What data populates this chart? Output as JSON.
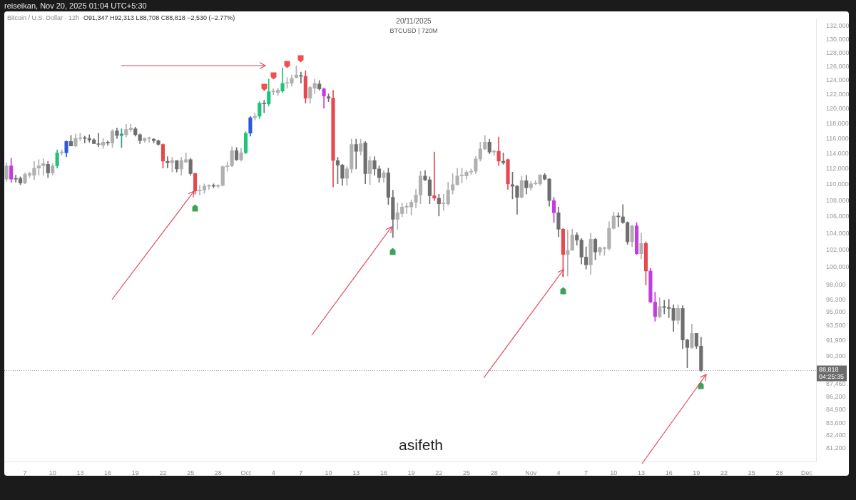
{
  "chart_data": {
    "type": "candlestick",
    "title": "20/11/2025",
    "subtitle": "BTCUSD | 720M",
    "annotations": [
      "reiseikan, Nov 20, 2025 01:04 UTC+5:30",
      "Bitcoin / U.S. Dollar · 12h",
      "O91,347 H92,313 L88,708 C88,818 −2,530 (−2.77%)",
      "04:25:35",
      "asifeth"
    ],
    "x": [
      "2025-09-05T00:00",
      "2025-09-05T12:00",
      "2025-09-06T00:00",
      "2025-09-06T12:00",
      "2025-09-07T00:00",
      "2025-09-07T12:00",
      "2025-09-08T00:00",
      "2025-09-08T12:00",
      "2025-09-09T00:00",
      "2025-09-09T12:00",
      "2025-09-10T00:00",
      "2025-09-10T12:00",
      "2025-09-11T00:00",
      "2025-09-11T12:00",
      "2025-09-12T00:00",
      "2025-09-12T12:00",
      "2025-09-13T00:00",
      "2025-09-13T12:00",
      "2025-09-14T00:00",
      "2025-09-14T12:00",
      "2025-09-15T00:00",
      "2025-09-15T12:00",
      "2025-09-16T00:00",
      "2025-09-16T12:00",
      "2025-09-17T00:00",
      "2025-09-17T12:00",
      "2025-09-18T00:00",
      "2025-09-18T12:00",
      "2025-09-19T00:00",
      "2025-09-19T12:00",
      "2025-09-20T00:00",
      "2025-09-20T12:00",
      "2025-09-21T00:00",
      "2025-09-21T12:00",
      "2025-09-22T00:00",
      "2025-09-22T12:00",
      "2025-09-23T00:00",
      "2025-09-23T12:00",
      "2025-09-24T00:00",
      "2025-09-24T12:00",
      "2025-09-25T00:00",
      "2025-09-25T12:00",
      "2025-09-26T00:00",
      "2025-09-26T12:00",
      "2025-09-27T00:00",
      "2025-09-27T12:00",
      "2025-09-28T00:00",
      "2025-09-28T12:00",
      "2025-09-29T00:00",
      "2025-09-29T12:00",
      "2025-09-30T00:00",
      "2025-09-30T12:00",
      "2025-10-01T00:00",
      "2025-10-01T12:00",
      "2025-10-02T00:00",
      "2025-10-02T12:00",
      "2025-10-03T00:00",
      "2025-10-03T12:00",
      "2025-10-04T00:00",
      "2025-10-04T12:00",
      "2025-10-05T00:00",
      "2025-10-05T12:00",
      "2025-10-06T00:00",
      "2025-10-06T12:00",
      "2025-10-07T00:00",
      "2025-10-07T12:00",
      "2025-10-08T00:00",
      "2025-10-08T12:00",
      "2025-10-09T00:00",
      "2025-10-09T12:00",
      "2025-10-10T00:00",
      "2025-10-10T12:00",
      "2025-10-11T00:00",
      "2025-10-11T12:00",
      "2025-10-12T00:00",
      "2025-10-12T12:00",
      "2025-10-13T00:00",
      "2025-10-13T12:00",
      "2025-10-14T00:00",
      "2025-10-14T12:00",
      "2025-10-15T00:00",
      "2025-10-15T12:00",
      "2025-10-16T00:00",
      "2025-10-16T12:00",
      "2025-10-17T00:00",
      "2025-10-17T12:00",
      "2025-10-18T00:00",
      "2025-10-18T12:00",
      "2025-10-19T00:00",
      "2025-10-19T12:00",
      "2025-10-20T00:00",
      "2025-10-20T12:00",
      "2025-10-21T00:00",
      "2025-10-21T12:00",
      "2025-10-22T00:00",
      "2025-10-22T12:00",
      "2025-10-23T00:00",
      "2025-10-23T12:00",
      "2025-10-24T00:00",
      "2025-10-24T12:00",
      "2025-10-25T00:00",
      "2025-10-25T12:00",
      "2025-10-26T00:00",
      "2025-10-26T12:00",
      "2025-10-27T00:00",
      "2025-10-27T12:00",
      "2025-10-28T00:00",
      "2025-10-28T12:00",
      "2025-10-29T00:00",
      "2025-10-29T12:00",
      "2025-10-30T00:00",
      "2025-10-30T12:00",
      "2025-10-31T00:00",
      "2025-10-31T12:00",
      "2025-11-01T00:00",
      "2025-11-01T12:00",
      "2025-11-02T00:00",
      "2025-11-02T12:00",
      "2025-11-03T00:00",
      "2025-11-03T12:00",
      "2025-11-04T00:00",
      "2025-11-04T12:00",
      "2025-11-05T00:00",
      "2025-11-05T12:00",
      "2025-11-06T00:00",
      "2025-11-06T12:00",
      "2025-11-07T00:00",
      "2025-11-07T12:00",
      "2025-11-08T00:00",
      "2025-11-08T12:00",
      "2025-11-09T00:00",
      "2025-11-09T12:00",
      "2025-11-10T00:00",
      "2025-11-10T12:00",
      "2025-11-11T00:00",
      "2025-11-11T12:00",
      "2025-11-12T00:00",
      "2025-11-12T12:00",
      "2025-11-13T00:00",
      "2025-11-13T12:00",
      "2025-11-14T00:00",
      "2025-11-14T12:00",
      "2025-11-15T00:00",
      "2025-11-15T12:00",
      "2025-11-16T00:00",
      "2025-11-16T12:00",
      "2025-11-17T00:00",
      "2025-11-17T12:00",
      "2025-11-18T00:00",
      "2025-11-18T12:00",
      "2025-11-19T00:00",
      "2025-11-19T12:00"
    ],
    "ohlc": [
      [
        110700,
        112800,
        110400,
        112400
      ],
      [
        112400,
        113400,
        110300,
        110700
      ],
      [
        110800,
        111200,
        110300,
        110700
      ],
      [
        110800,
        111000,
        110000,
        110200
      ],
      [
        110200,
        111500,
        110100,
        111300
      ],
      [
        111200,
        111600,
        110900,
        111400
      ],
      [
        111200,
        113000,
        110600,
        112100
      ],
      [
        112100,
        113200,
        111200,
        112400
      ],
      [
        112400,
        113300,
        111200,
        112700
      ],
      [
        112600,
        113000,
        110900,
        111500
      ],
      [
        111500,
        112700,
        111200,
        112400
      ],
      [
        112400,
        114500,
        112100,
        114100
      ],
      [
        114100,
        114500,
        113800,
        114200
      ],
      [
        114100,
        115700,
        113600,
        115600
      ],
      [
        115600,
        116400,
        115000,
        115000
      ],
      [
        115000,
        116600,
        114900,
        116000
      ],
      [
        116000,
        116700,
        115700,
        116100
      ],
      [
        116100,
        116300,
        115400,
        116000
      ],
      [
        116000,
        116500,
        115500,
        115800
      ],
      [
        115800,
        116000,
        115300,
        115300
      ],
      [
        115300,
        116700,
        114900,
        115200
      ],
      [
        115100,
        116000,
        114700,
        115500
      ],
      [
        115500,
        115700,
        115100,
        115400
      ],
      [
        115400,
        117200,
        114800,
        117000
      ],
      [
        117000,
        117400,
        116000,
        116400
      ],
      [
        116400,
        117300,
        114800,
        116600
      ],
      [
        116500,
        117900,
        116200,
        117200
      ],
      [
        117200,
        117900,
        116900,
        117400
      ],
      [
        117300,
        117500,
        116300,
        116500
      ],
      [
        116500,
        116600,
        115300,
        115700
      ],
      [
        115700,
        116100,
        115500,
        116000
      ],
      [
        116000,
        116200,
        115500,
        116100
      ],
      [
        115900,
        116000,
        115400,
        115700
      ],
      [
        115700,
        115800,
        115100,
        115200
      ],
      [
        115200,
        115300,
        112100,
        113000
      ],
      [
        113000,
        113600,
        112100,
        112800
      ],
      [
        112800,
        113500,
        111600,
        113100
      ],
      [
        113100,
        113100,
        111600,
        112000
      ],
      [
        112000,
        113500,
        111200,
        113100
      ],
      [
        112900,
        114100,
        112800,
        113200
      ],
      [
        113200,
        113400,
        111200,
        111400
      ],
      [
        111400,
        111500,
        108800,
        109200
      ],
      [
        109200,
        109900,
        108700,
        109300
      ],
      [
        109300,
        110100,
        108900,
        109800
      ],
      [
        109800,
        110000,
        109400,
        109900
      ],
      [
        109900,
        110100,
        109600,
        109800
      ],
      [
        109800,
        110000,
        109600,
        109900
      ],
      [
        109900,
        112400,
        109800,
        112300
      ],
      [
        112300,
        112900,
        111700,
        112400
      ],
      [
        112400,
        114900,
        112300,
        114400
      ],
      [
        114400,
        114800,
        113100,
        113200
      ],
      [
        113200,
        114700,
        113000,
        114100
      ],
      [
        114100,
        116900,
        114000,
        116700
      ],
      [
        116700,
        119000,
        116300,
        118800
      ],
      [
        118800,
        119400,
        118500,
        119000
      ],
      [
        119000,
        121000,
        118700,
        120800
      ],
      [
        120800,
        121200,
        119500,
        120700
      ],
      [
        120700,
        124200,
        120400,
        122400
      ],
      [
        122400,
        122800,
        122000,
        122500
      ],
      [
        122300,
        122900,
        121900,
        122600
      ],
      [
        122500,
        125800,
        122300,
        123600
      ],
      [
        123600,
        124400,
        122900,
        123700
      ],
      [
        123600,
        124800,
        123200,
        124300
      ],
      [
        124400,
        126100,
        124400,
        124800
      ],
      [
        124700,
        125200,
        123600,
        124600
      ],
      [
        124600,
        125400,
        120800,
        121500
      ],
      [
        121500,
        123200,
        120800,
        123000
      ],
      [
        122900,
        124200,
        122100,
        123600
      ],
      [
        123500,
        124000,
        122600,
        122800
      ],
      [
        122800,
        122900,
        120100,
        121800
      ],
      [
        121700,
        122100,
        121000,
        121500
      ],
      [
        121500,
        122600,
        109700,
        113100
      ],
      [
        113100,
        113500,
        110100,
        112500
      ],
      [
        112500,
        112600,
        109900,
        110800
      ],
      [
        110800,
        112300,
        109900,
        112000
      ],
      [
        112000,
        115900,
        111500,
        115200
      ],
      [
        115200,
        115900,
        112000,
        114300
      ],
      [
        114300,
        115900,
        113800,
        115300
      ],
      [
        115400,
        115600,
        110100,
        111400
      ],
      [
        111400,
        113600,
        110000,
        113100
      ],
      [
        113100,
        113600,
        111200,
        112000
      ],
      [
        112000,
        112400,
        110300,
        110900
      ],
      [
        110900,
        111800,
        110300,
        111500
      ],
      [
        111500,
        112100,
        107500,
        108400
      ],
      [
        108400,
        109300,
        103500,
        105700
      ],
      [
        105700,
        107700,
        104500,
        106500
      ],
      [
        106400,
        107700,
        106000,
        107200
      ],
      [
        107200,
        107700,
        106400,
        107300
      ],
      [
        107200,
        108100,
        106200,
        107800
      ],
      [
        107800,
        109400,
        107100,
        108700
      ],
      [
        108700,
        111700,
        107600,
        111100
      ],
      [
        111100,
        111800,
        110500,
        110600
      ],
      [
        110600,
        111000,
        107600,
        108600
      ],
      [
        108600,
        114200,
        108000,
        108300
      ],
      [
        108300,
        108800,
        106100,
        107600
      ],
      [
        107600,
        108800,
        106800,
        107700
      ],
      [
        107600,
        110300,
        107400,
        109300
      ],
      [
        109300,
        111400,
        108800,
        110000
      ],
      [
        110000,
        112100,
        109900,
        111100
      ],
      [
        111100,
        112100,
        110200,
        111200
      ],
      [
        111100,
        111800,
        110700,
        111600
      ],
      [
        111600,
        112000,
        111300,
        111700
      ],
      [
        111700,
        113600,
        111400,
        113300
      ],
      [
        113300,
        115500,
        113000,
        114600
      ],
      [
        114600,
        116400,
        114500,
        115500
      ],
      [
        115500,
        115900,
        114000,
        114200
      ],
      [
        114200,
        114500,
        113800,
        114300
      ],
      [
        114300,
        116200,
        112400,
        113000
      ],
      [
        113000,
        114100,
        112600,
        112800
      ],
      [
        113200,
        113300,
        109400,
        110100
      ],
      [
        110000,
        111600,
        108200,
        109800
      ],
      [
        109800,
        109900,
        106300,
        108400
      ],
      [
        108400,
        111100,
        108300,
        110500
      ],
      [
        110500,
        111200,
        108800,
        109600
      ],
      [
        109600,
        110400,
        109300,
        110100
      ],
      [
        110100,
        110500,
        110000,
        110200
      ],
      [
        110100,
        111300,
        109900,
        111200
      ],
      [
        111200,
        111400,
        110600,
        110700
      ],
      [
        110700,
        110800,
        107300,
        108000
      ],
      [
        108000,
        108400,
        105300,
        106500
      ],
      [
        106500,
        107200,
        103600,
        104500
      ],
      [
        104500,
        104600,
        98900,
        101500
      ],
      [
        101500,
        104400,
        99000,
        102000
      ],
      [
        102000,
        104500,
        102000,
        103800
      ],
      [
        103800,
        104100,
        102600,
        103200
      ],
      [
        103200,
        103400,
        100400,
        101200
      ],
      [
        101200,
        102400,
        99800,
        100300
      ],
      [
        100300,
        104000,
        99200,
        103300
      ],
      [
        103300,
        103400,
        100900,
        101800
      ],
      [
        101800,
        102400,
        101400,
        102300
      ],
      [
        102200,
        102400,
        101400,
        102300
      ],
      [
        102200,
        105400,
        102000,
        104600
      ],
      [
        104600,
        106600,
        104500,
        106100
      ],
      [
        106100,
        106500,
        104800,
        106000
      ],
      [
        106000,
        107500,
        105200,
        105300
      ],
      [
        105300,
        105400,
        102700,
        103000
      ],
      [
        103000,
        105000,
        102400,
        104900
      ],
      [
        104900,
        105300,
        101500,
        101600
      ],
      [
        101600,
        104000,
        101000,
        102800
      ],
      [
        102800,
        103000,
        98000,
        99600
      ],
      [
        99600,
        99900,
        96000,
        96100
      ],
      [
        96100,
        97200,
        94000,
        94500
      ],
      [
        94500,
        96600,
        94400,
        95600
      ],
      [
        95600,
        96300,
        94800,
        95500
      ],
      [
        95500,
        96400,
        94400,
        95400
      ],
      [
        95400,
        95800,
        92900,
        94100
      ],
      [
        94100,
        95800,
        93700,
        95400
      ],
      [
        95400,
        95700,
        91100,
        92000
      ],
      [
        92000,
        92100,
        89100,
        91200
      ],
      [
        91200,
        93700,
        91100,
        92700
      ],
      [
        92700,
        92700,
        91100,
        91347
      ],
      [
        91347,
        92313,
        88708,
        88818
      ]
    ],
    "colors": [
      "#b0b0b0",
      "#c33ce0",
      "#6e6e6e",
      "#6e6e6e",
      "#b0b0b0",
      "#b0b0b0",
      "#b0b0b0",
      "#b0b0b0",
      "#b0b0b0",
      "#6e6e6e",
      "#b0b0b0",
      "#1fc47a",
      "#b0b0b0",
      "#2a5bd7",
      "#6e6e6e",
      "#b0b0b0",
      "#b0b0b0",
      "#6e6e6e",
      "#6e6e6e",
      "#6e6e6e",
      "#6e6e6e",
      "#b0b0b0",
      "#6e6e6e",
      "#b0b0b0",
      "#6e6e6e",
      "#2aa38a",
      "#b0b0b0",
      "#b0b0b0",
      "#6e6e6e",
      "#6e6e6e",
      "#b0b0b0",
      "#b0b0b0",
      "#6e6e6e",
      "#6e6e6e",
      "#e5484d",
      "#6e6e6e",
      "#b0b0b0",
      "#6e6e6e",
      "#b0b0b0",
      "#b0b0b0",
      "#6e6e6e",
      "#e5484d",
      "#b0b0b0",
      "#b0b0b0",
      "#b0b0b0",
      "#6e6e6e",
      "#b0b0b0",
      "#b0b0b0",
      "#b0b0b0",
      "#b0b0b0",
      "#6e6e6e",
      "#b0b0b0",
      "#1fc47a",
      "#2a5bd7",
      "#b0b0b0",
      "#1fc47a",
      "#6e6e6e",
      "#1fc47a",
      "#b0b0b0",
      "#b0b0b0",
      "#1fc47a",
      "#b0b0b0",
      "#b0b0b0",
      "#b0b0b0",
      "#6e6e6e",
      "#e5484d",
      "#b0b0b0",
      "#b0b0b0",
      "#6e6e6e",
      "#c33ce0",
      "#6e6e6e",
      "#e5484d",
      "#6e6e6e",
      "#6e6e6e",
      "#b0b0b0",
      "#b0b0b0",
      "#6e6e6e",
      "#b0b0b0",
      "#6e6e6e",
      "#b0b0b0",
      "#6e6e6e",
      "#6e6e6e",
      "#b0b0b0",
      "#6e6e6e",
      "#6e6e6e",
      "#b0b0b0",
      "#b0b0b0",
      "#b0b0b0",
      "#b0b0b0",
      "#b0b0b0",
      "#b0b0b0",
      "#6e6e6e",
      "#6e6e6e",
      "#e5484d",
      "#6e6e6e",
      "#b0b0b0",
      "#b0b0b0",
      "#b0b0b0",
      "#b0b0b0",
      "#b0b0b0",
      "#b0b0b0",
      "#b0b0b0",
      "#b0b0b0",
      "#b0b0b0",
      "#b0b0b0",
      "#6e6e6e",
      "#b0b0b0",
      "#e5484d",
      "#6e6e6e",
      "#e5484d",
      "#6e6e6e",
      "#6e6e6e",
      "#b0b0b0",
      "#6e6e6e",
      "#b0b0b0",
      "#b0b0b0",
      "#b0b0b0",
      "#6e6e6e",
      "#6e6e6e",
      "#c33ce0",
      "#6e6e6e",
      "#e5484d",
      "#b0b0b0",
      "#b0b0b0",
      "#6e6e6e",
      "#6e6e6e",
      "#6e6e6e",
      "#b0b0b0",
      "#6e6e6e",
      "#b0b0b0",
      "#b0b0b0",
      "#b0b0b0",
      "#b0b0b0",
      "#6e6e6e",
      "#6e6e6e",
      "#6e6e6e",
      "#b0b0b0",
      "#c33ce0",
      "#b0b0b0",
      "#e5484d",
      "#c33ce0",
      "#c33ce0",
      "#b0b0b0",
      "#6e6e6e",
      "#6e6e6e",
      "#6e6e6e",
      "#b0b0b0",
      "#6e6e6e",
      "#6e6e6e",
      "#b0b0b0",
      "#6e6e6e",
      "#6e6e6e"
    ],
    "xlim": [
      "2025-09-04T18:00",
      "2025-12-02"
    ],
    "xticks": [
      {
        "value": "2025-09-07",
        "label": "7"
      },
      {
        "value": "2025-09-10",
        "label": "10"
      },
      {
        "value": "2025-09-13",
        "label": "13"
      },
      {
        "value": "2025-09-16",
        "label": "16"
      },
      {
        "value": "2025-09-19",
        "label": "19"
      },
      {
        "value": "2025-09-22",
        "label": "22"
      },
      {
        "value": "2025-09-25",
        "label": "25"
      },
      {
        "value": "2025-09-28",
        "label": "28"
      },
      {
        "value": "2025-10-01",
        "label": "Oct"
      },
      {
        "value": "2025-10-04",
        "label": "4"
      },
      {
        "value": "2025-10-07",
        "label": "7"
      },
      {
        "value": "2025-10-10",
        "label": "10"
      },
      {
        "value": "2025-10-13",
        "label": "13"
      },
      {
        "value": "2025-10-16",
        "label": "16"
      },
      {
        "value": "2025-10-19",
        "label": "19"
      },
      {
        "value": "2025-10-22",
        "label": "22"
      },
      {
        "value": "2025-10-25",
        "label": "25"
      },
      {
        "value": "2025-10-28",
        "label": "28"
      },
      {
        "value": "2025-11-01",
        "label": "Nov"
      },
      {
        "value": "2025-11-04",
        "label": "4"
      },
      {
        "value": "2025-11-07",
        "label": "7"
      },
      {
        "value": "2025-11-10",
        "label": "10"
      },
      {
        "value": "2025-11-13",
        "label": "13"
      },
      {
        "value": "2025-11-16",
        "label": "16"
      },
      {
        "value": "2025-11-19",
        "label": "19"
      },
      {
        "value": "2025-11-22",
        "label": "22"
      },
      {
        "value": "2025-11-25",
        "label": "25"
      },
      {
        "value": "2025-11-28",
        "label": "28"
      },
      {
        "value": "2025-12-01",
        "label": "Dec"
      }
    ],
    "ylim": [
      80000,
      133000
    ],
    "yticks": [
      {
        "value": 132000,
        "label": "132,000"
      },
      {
        "value": 130000,
        "label": "130,000"
      },
      {
        "value": 128000,
        "label": "128,000"
      },
      {
        "value": 126000,
        "label": "126,000"
      },
      {
        "value": 124000,
        "label": "124,000"
      },
      {
        "value": 122000,
        "label": "122,000"
      },
      {
        "value": 120000,
        "label": "120,000"
      },
      {
        "value": 118000,
        "label": "118,000"
      },
      {
        "value": 116000,
        "label": "116,000"
      },
      {
        "value": 114000,
        "label": "114,000"
      },
      {
        "value": 112000,
        "label": "112,000"
      },
      {
        "value": 110000,
        "label": "110,000"
      },
      {
        "value": 108000,
        "label": "108,000"
      },
      {
        "value": 106000,
        "label": "106,000"
      },
      {
        "value": 104000,
        "label": "104,000"
      },
      {
        "value": 102000,
        "label": "102,000"
      },
      {
        "value": 100000,
        "label": "100,000"
      },
      {
        "value": 98000,
        "label": "98,000"
      },
      {
        "value": 96300,
        "label": "96,300"
      },
      {
        "value": 95000,
        "label": "95,000"
      },
      {
        "value": 93500,
        "label": "93,500"
      },
      {
        "value": 91900,
        "label": "91,900"
      },
      {
        "value": 90300,
        "label": "90,300"
      },
      {
        "value": 87460,
        "label": "87,460"
      },
      {
        "value": 86200,
        "label": "86,200"
      },
      {
        "value": 84900,
        "label": "84,900"
      },
      {
        "value": 83600,
        "label": "83,600"
      },
      {
        "value": 82400,
        "label": "82,400"
      },
      {
        "value": 81200,
        "label": "81,200"
      }
    ],
    "log": true,
    "ref_lines": [
      {
        "axis": "y",
        "value": 88818,
        "label": "88,818",
        "color": "#9e9e9e",
        "line_style": "dotted"
      }
    ]
  }
}
